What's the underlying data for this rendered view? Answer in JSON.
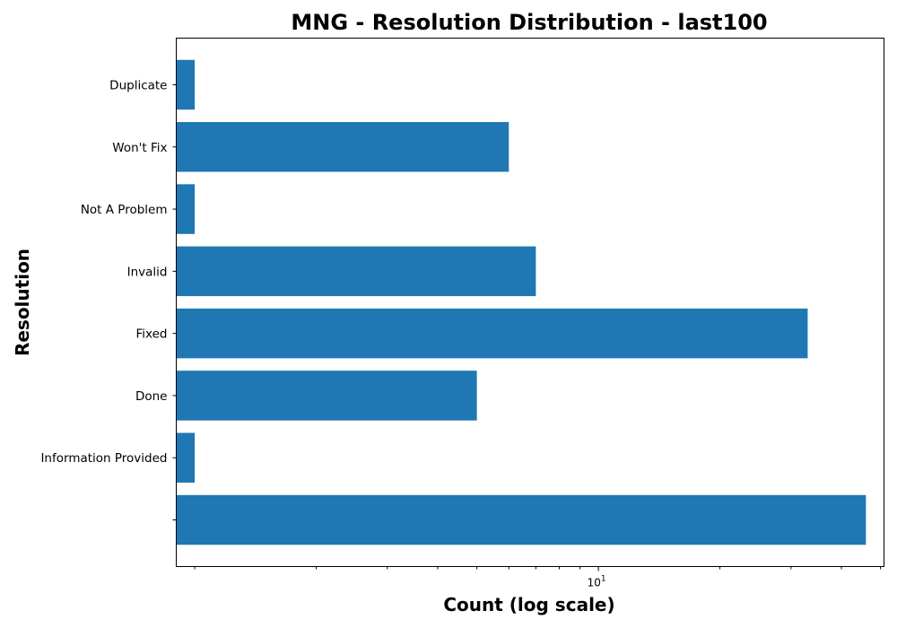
{
  "chart_data": {
    "type": "bar",
    "orientation": "horizontal",
    "title": "MNG - Resolution Distribution - last100",
    "xlabel": "Count (log scale)",
    "ylabel": "Resolution",
    "x_scale": "log",
    "xlim": [
      0.9,
      51
    ],
    "x_tick_labels": [
      {
        "value": 10,
        "base": "10",
        "exp": "1"
      }
    ],
    "x_minor_ticks": [
      1,
      2,
      3,
      4,
      5,
      6,
      7,
      8,
      9,
      20,
      30,
      40,
      50
    ],
    "categories": [
      "Duplicate",
      "Won't Fix",
      "Not A Problem",
      "Invalid",
      "Fixed",
      "Done",
      "Information Provided",
      ""
    ],
    "values": [
      1,
      6,
      1,
      7,
      33,
      5,
      1,
      46
    ],
    "bar_color": "#1f77b4",
    "grid": false
  }
}
